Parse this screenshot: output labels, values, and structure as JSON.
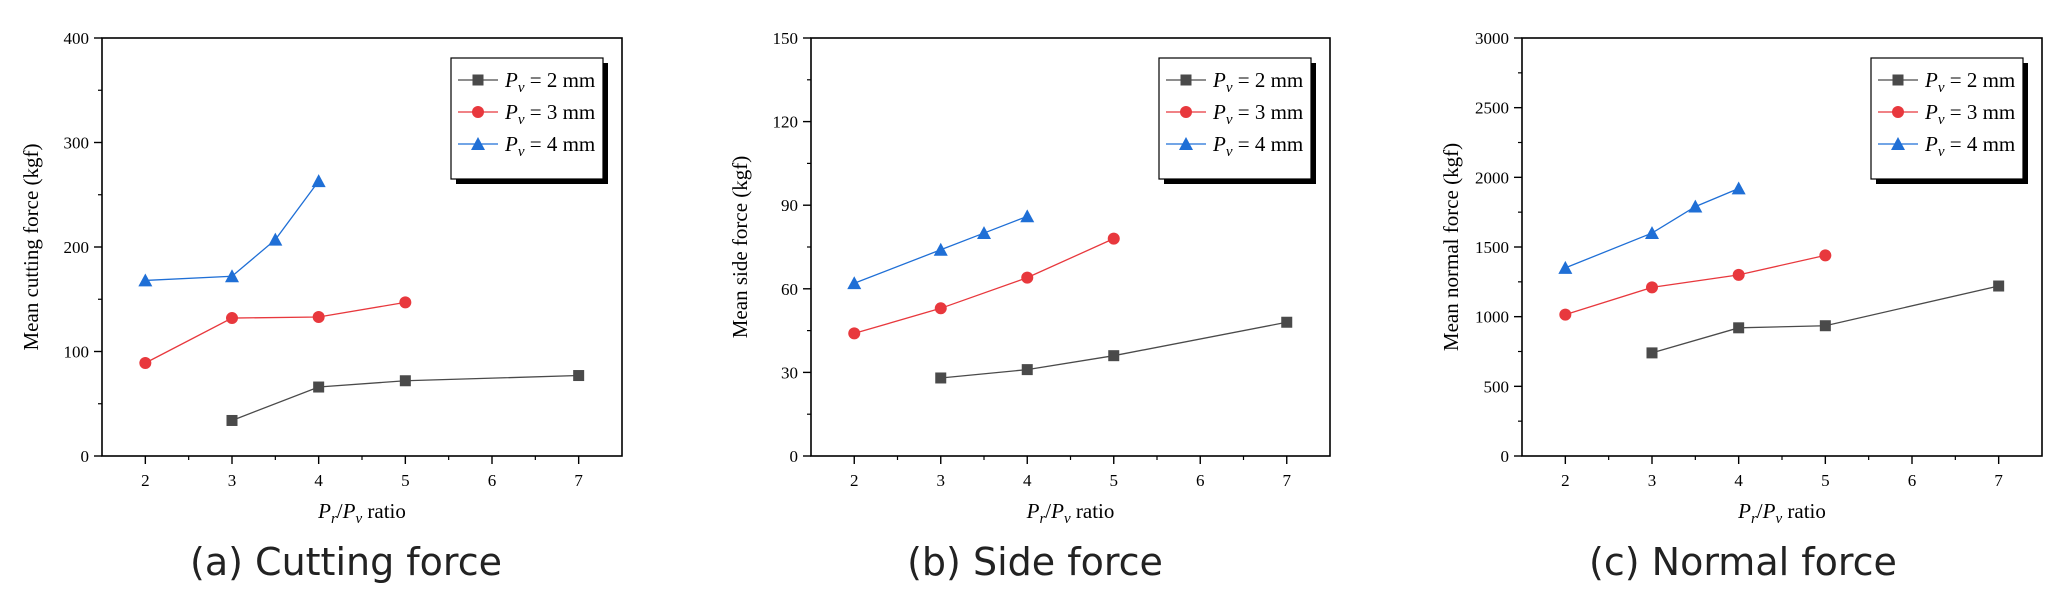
{
  "colors": {
    "pv2": "#4a4a4a",
    "pv3": "#e8383d",
    "pv4": "#1f6fd6",
    "axis": "#000000"
  },
  "legend_entries": [
    {
      "prefix": "P",
      "sub": "v",
      "suffix": " = 2 mm"
    },
    {
      "prefix": "P",
      "sub": "v",
      "suffix": " = 3 mm"
    },
    {
      "prefix": "P",
      "sub": "v",
      "suffix": " = 4 mm"
    }
  ],
  "chart_data": [
    {
      "type": "line",
      "caption": "(a) Cutting force",
      "ylabel": "Mean cutting force (kgf)",
      "xlabel": {
        "p1": "P",
        "s1": "r",
        "mid": "/",
        "p2": "P",
        "s2": "v",
        "suffix": " ratio"
      },
      "xlim": [
        1.5,
        7.5
      ],
      "ylim": [
        0,
        400
      ],
      "xticks": [
        2,
        3,
        4,
        5,
        6,
        7
      ],
      "yticks": [
        0,
        100,
        200,
        300,
        400
      ],
      "ytick_labels": [
        "0",
        "100",
        "200",
        "300",
        "400"
      ],
      "series": [
        {
          "name": "Pv = 2 mm",
          "marker": "square",
          "color_key": "pv2",
          "x": [
            3,
            4,
            5,
            7
          ],
          "y": [
            34,
            66,
            72,
            77
          ]
        },
        {
          "name": "Pv = 3 mm",
          "marker": "circle",
          "color_key": "pv3",
          "x": [
            2,
            3,
            4,
            5
          ],
          "y": [
            89,
            132,
            133,
            147
          ]
        },
        {
          "name": "Pv = 4 mm",
          "marker": "triangle",
          "color_key": "pv4",
          "x": [
            2,
            3,
            3.5,
            4
          ],
          "y": [
            168,
            172,
            207,
            263
          ]
        }
      ]
    },
    {
      "type": "line",
      "caption": "(b) Side force",
      "ylabel": "Mean side force (kgf)",
      "xlabel": {
        "p1": "P",
        "s1": "r",
        "mid": "/",
        "p2": "P",
        "s2": "v",
        "suffix": " ratio"
      },
      "xlim": [
        1.5,
        7.5
      ],
      "ylim": [
        0,
        150
      ],
      "xticks": [
        2,
        3,
        4,
        5,
        6,
        7
      ],
      "yticks": [
        0,
        30,
        60,
        90,
        120,
        150
      ],
      "ytick_labels": [
        "0",
        "30",
        "60",
        "90",
        "120",
        "150"
      ],
      "series": [
        {
          "name": "Pv = 2 mm",
          "marker": "square",
          "color_key": "pv2",
          "x": [
            3,
            4,
            5,
            7
          ],
          "y": [
            28,
            31,
            36,
            48
          ]
        },
        {
          "name": "Pv = 3 mm",
          "marker": "circle",
          "color_key": "pv3",
          "x": [
            2,
            3,
            4,
            5
          ],
          "y": [
            44,
            53,
            64,
            78
          ]
        },
        {
          "name": "Pv = 4 mm",
          "marker": "triangle",
          "color_key": "pv4",
          "x": [
            2,
            3,
            3.5,
            4
          ],
          "y": [
            62,
            74,
            80,
            86
          ]
        }
      ]
    },
    {
      "type": "line",
      "caption": "(c) Normal force",
      "ylabel": "Mean normal force (kgf)",
      "xlabel": {
        "p1": "P",
        "s1": "r",
        "mid": "/",
        "p2": "P",
        "s2": "v",
        "suffix": " ratio"
      },
      "xlim": [
        1.5,
        7.5
      ],
      "ylim": [
        0,
        3000
      ],
      "xticks": [
        2,
        3,
        4,
        5,
        6,
        7
      ],
      "yticks": [
        0,
        500,
        1000,
        1500,
        2000,
        2500,
        3000
      ],
      "ytick_labels": [
        "0",
        "500",
        "1000",
        "1500",
        "2000",
        "2500",
        "3000"
      ],
      "series": [
        {
          "name": "Pv = 2 mm",
          "marker": "square",
          "color_key": "pv2",
          "x": [
            3,
            4,
            5,
            7
          ],
          "y": [
            740,
            920,
            935,
            1220
          ]
        },
        {
          "name": "Pv = 3 mm",
          "marker": "circle",
          "color_key": "pv3",
          "x": [
            2,
            3,
            4,
            5
          ],
          "y": [
            1015,
            1210,
            1300,
            1440
          ]
        },
        {
          "name": "Pv = 4 mm",
          "marker": "triangle",
          "color_key": "pv4",
          "x": [
            2,
            3,
            3.5,
            4
          ],
          "y": [
            1350,
            1600,
            1790,
            1920
          ]
        }
      ]
    }
  ]
}
